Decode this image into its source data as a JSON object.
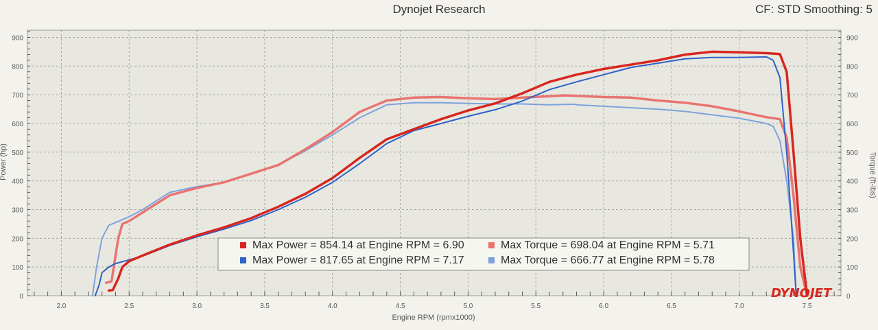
{
  "header": {
    "title": "Dynojet Research",
    "settings": "CF: STD Smoothing: 5"
  },
  "brand": "DYNOJET",
  "chart_data": {
    "type": "line",
    "xlabel": "Engine RPM (rpmx1000)",
    "ylabel_left": "Power (hp)",
    "ylabel_right": "Torque (ft-lbs)",
    "xlim": [
      1.75,
      7.75
    ],
    "ylim_left": [
      0,
      925
    ],
    "ylim_right": [
      0,
      925
    ],
    "x_ticks": [
      2.0,
      2.5,
      3.0,
      3.5,
      4.0,
      4.5,
      5.0,
      5.5,
      6.0,
      6.5,
      7.0,
      7.5
    ],
    "x_tick_labels": [
      "2.0",
      "2.5",
      "3.0",
      "3.5",
      "4.0",
      "4.5",
      "5.0",
      "5.5",
      "6.0",
      "6.5",
      "7.0",
      "7.5"
    ],
    "y_ticks_left": [
      0,
      100,
      200,
      300,
      400,
      500,
      600,
      700,
      800,
      900
    ],
    "y_ticks_right": [
      0,
      100,
      200,
      300,
      400,
      500,
      600,
      700,
      800,
      900
    ],
    "grid": true,
    "legend": {
      "position": "bottom-center",
      "entries": [
        {
          "text": "Max Power = 854.14 at Engine RPM = 6.90",
          "color": "#d8261e"
        },
        {
          "text": "Max Power = 817.65 at Engine RPM = 7.17",
          "color": "#2e62c9"
        },
        {
          "text": "Max Torque = 698.04 at Engine RPM = 5.71",
          "color": "#e87470"
        },
        {
          "text": "Max Torque = 666.77 at Engine RPM = 5.78",
          "color": "#7fa2dc"
        }
      ]
    },
    "series": [
      {
        "color": "#d8261e",
        "width": 3.5,
        "axis": "left",
        "x": [
          2.35,
          2.38,
          2.42,
          2.45,
          2.5,
          2.6,
          2.8,
          3.0,
          3.2,
          3.4,
          3.6,
          3.8,
          4.0,
          4.2,
          4.4,
          4.6,
          4.8,
          5.0,
          5.2,
          5.4,
          5.6,
          5.8,
          6.0,
          6.2,
          6.4,
          6.6,
          6.8,
          7.0,
          7.2,
          7.3,
          7.35,
          7.4,
          7.45,
          7.5
        ],
        "y": [
          18,
          20,
          60,
          100,
          120,
          140,
          178,
          210,
          238,
          270,
          310,
          355,
          410,
          480,
          545,
          580,
          615,
          645,
          670,
          705,
          745,
          770,
          790,
          805,
          820,
          840,
          850,
          848,
          845,
          842,
          780,
          500,
          200,
          0
        ]
      },
      {
        "color": "#2e62c9",
        "width": 2,
        "axis": "left",
        "x": [
          2.25,
          2.28,
          2.3,
          2.35,
          2.4,
          2.5,
          2.6,
          2.8,
          3.0,
          3.2,
          3.4,
          3.6,
          3.8,
          4.0,
          4.2,
          4.4,
          4.6,
          4.8,
          5.0,
          5.2,
          5.4,
          5.6,
          5.8,
          6.0,
          6.2,
          6.4,
          6.6,
          6.8,
          7.0,
          7.2,
          7.25,
          7.3,
          7.35,
          7.4,
          7.42
        ],
        "y": [
          0,
          40,
          80,
          100,
          112,
          125,
          138,
          175,
          205,
          232,
          262,
          300,
          343,
          395,
          460,
          530,
          575,
          600,
          625,
          648,
          678,
          718,
          745,
          770,
          795,
          810,
          825,
          830,
          830,
          832,
          820,
          760,
          500,
          150,
          0
        ]
      },
      {
        "color": "#e87470",
        "width": 3.5,
        "axis": "right",
        "x": [
          2.33,
          2.37,
          2.42,
          2.45,
          2.5,
          2.6,
          2.8,
          3.0,
          3.2,
          3.4,
          3.6,
          3.8,
          4.0,
          4.2,
          4.4,
          4.6,
          4.8,
          5.0,
          5.2,
          5.4,
          5.6,
          5.71,
          5.8,
          6.0,
          6.2,
          6.4,
          6.6,
          6.8,
          7.0,
          7.2,
          7.3,
          7.35,
          7.4,
          7.45,
          7.5
        ],
        "y": [
          45,
          50,
          200,
          250,
          260,
          290,
          350,
          375,
          395,
          425,
          455,
          510,
          570,
          640,
          680,
          690,
          692,
          688,
          685,
          690,
          695,
          698,
          696,
          692,
          690,
          680,
          672,
          660,
          642,
          622,
          615,
          550,
          350,
          100,
          0
        ]
      },
      {
        "color": "#7fa2dc",
        "width": 2,
        "axis": "right",
        "x": [
          2.23,
          2.26,
          2.3,
          2.35,
          2.4,
          2.5,
          2.6,
          2.8,
          3.0,
          3.2,
          3.4,
          3.6,
          3.8,
          4.0,
          4.2,
          4.4,
          4.6,
          4.8,
          5.0,
          5.2,
          5.4,
          5.6,
          5.78,
          5.8,
          6.0,
          6.2,
          6.4,
          6.6,
          6.8,
          7.0,
          7.2,
          7.25,
          7.3,
          7.35,
          7.4,
          7.42
        ],
        "y": [
          0,
          100,
          200,
          245,
          255,
          275,
          300,
          360,
          380,
          395,
          425,
          455,
          505,
          560,
          620,
          665,
          672,
          672,
          670,
          668,
          668,
          665,
          667,
          665,
          660,
          655,
          650,
          642,
          630,
          618,
          600,
          590,
          540,
          400,
          200,
          0
        ]
      }
    ]
  }
}
